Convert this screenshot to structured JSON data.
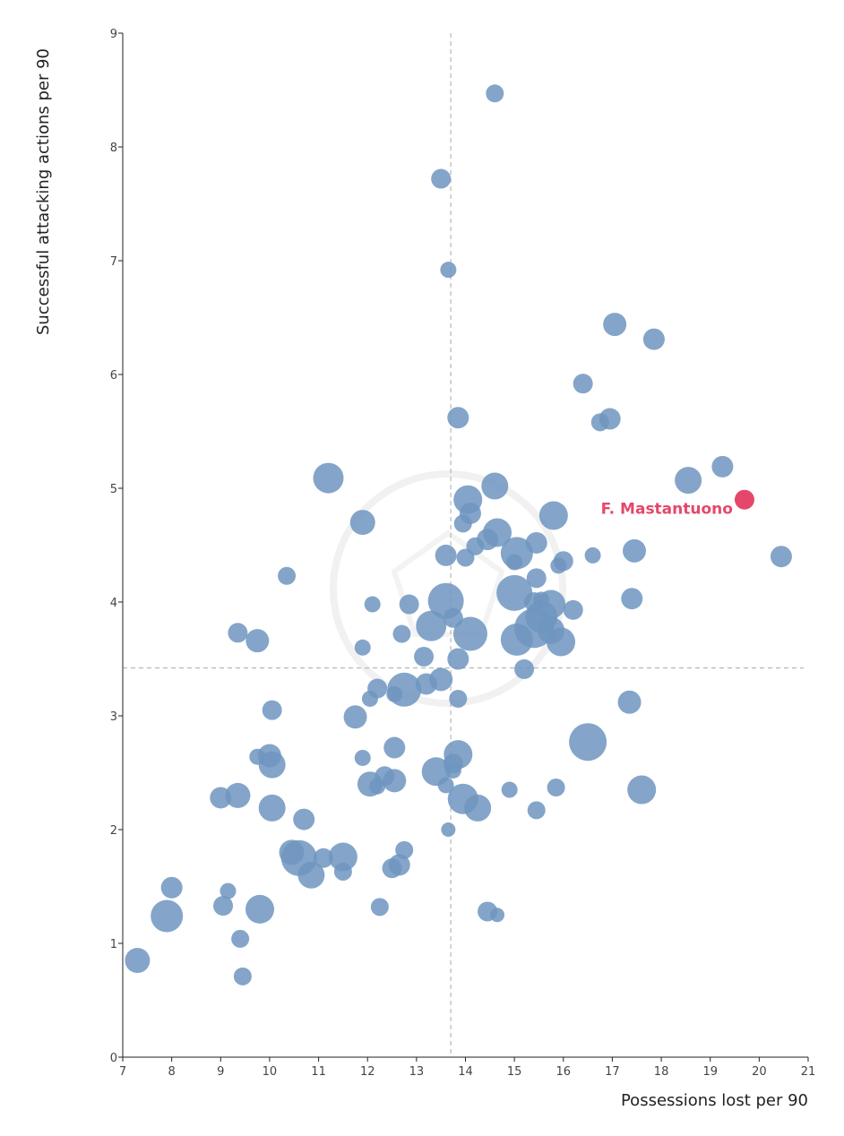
{
  "chart_data": {
    "type": "scatter",
    "xlabel": "Possessions lost per 90",
    "ylabel": "Successful attacking actions per 90",
    "xlim": [
      7,
      21
    ],
    "ylim": [
      0,
      9
    ],
    "x_ticks": [
      7,
      8,
      9,
      10,
      11,
      12,
      13,
      14,
      15,
      16,
      17,
      18,
      19,
      20,
      21
    ],
    "y_ticks": [
      0,
      1,
      2,
      3,
      4,
      5,
      6,
      7,
      8,
      9
    ],
    "reference_lines": {
      "x": 13.7,
      "y": 3.42
    },
    "grid": false,
    "colors": {
      "points": "#6f95bf",
      "highlight": "#e5476a",
      "reference_line": "#aaaaaa",
      "axis": "#222222"
    },
    "highlight": {
      "name": "F. Mastantuono",
      "x": 19.7,
      "y": 4.9
    },
    "points": [
      {
        "x": 14.6,
        "y": 8.47,
        "s": 10
      },
      {
        "x": 13.5,
        "y": 7.72,
        "s": 11
      },
      {
        "x": 13.65,
        "y": 6.92,
        "s": 9
      },
      {
        "x": 17.05,
        "y": 6.44,
        "s": 13
      },
      {
        "x": 17.85,
        "y": 6.31,
        "s": 12
      },
      {
        "x": 16.4,
        "y": 5.92,
        "s": 11
      },
      {
        "x": 13.85,
        "y": 5.62,
        "s": 12
      },
      {
        "x": 16.75,
        "y": 5.58,
        "s": 10
      },
      {
        "x": 16.95,
        "y": 5.61,
        "s": 12
      },
      {
        "x": 19.25,
        "y": 5.19,
        "s": 12
      },
      {
        "x": 18.55,
        "y": 5.07,
        "s": 15
      },
      {
        "x": 11.2,
        "y": 5.09,
        "s": 17
      },
      {
        "x": 14.05,
        "y": 4.9,
        "s": 16
      },
      {
        "x": 14.6,
        "y": 5.02,
        "s": 15
      },
      {
        "x": 14.1,
        "y": 4.78,
        "s": 12
      },
      {
        "x": 11.9,
        "y": 4.7,
        "s": 14
      },
      {
        "x": 15.8,
        "y": 4.76,
        "s": 16
      },
      {
        "x": 13.95,
        "y": 4.69,
        "s": 10
      },
      {
        "x": 14.65,
        "y": 4.61,
        "s": 16
      },
      {
        "x": 14.45,
        "y": 4.55,
        "s": 12
      },
      {
        "x": 14.2,
        "y": 4.49,
        "s": 10
      },
      {
        "x": 15.45,
        "y": 4.52,
        "s": 12
      },
      {
        "x": 15.05,
        "y": 4.43,
        "s": 18
      },
      {
        "x": 17.45,
        "y": 4.45,
        "s": 13
      },
      {
        "x": 13.6,
        "y": 4.41,
        "s": 12
      },
      {
        "x": 14.0,
        "y": 4.39,
        "s": 10
      },
      {
        "x": 15.0,
        "y": 4.35,
        "s": 9
      },
      {
        "x": 15.9,
        "y": 4.32,
        "s": 9
      },
      {
        "x": 16.0,
        "y": 4.36,
        "s": 11
      },
      {
        "x": 16.6,
        "y": 4.41,
        "s": 9
      },
      {
        "x": 20.45,
        "y": 4.4,
        "s": 12
      },
      {
        "x": 10.35,
        "y": 4.23,
        "s": 10
      },
      {
        "x": 15.45,
        "y": 4.21,
        "s": 11
      },
      {
        "x": 15.0,
        "y": 4.08,
        "s": 20
      },
      {
        "x": 13.6,
        "y": 4.01,
        "s": 20
      },
      {
        "x": 15.4,
        "y": 4.0,
        "s": 11
      },
      {
        "x": 15.75,
        "y": 3.98,
        "s": 16
      },
      {
        "x": 15.55,
        "y": 4.02,
        "s": 9
      },
      {
        "x": 17.4,
        "y": 4.03,
        "s": 12
      },
      {
        "x": 12.1,
        "y": 3.98,
        "s": 9
      },
      {
        "x": 12.85,
        "y": 3.98,
        "s": 11
      },
      {
        "x": 16.2,
        "y": 3.93,
        "s": 11
      },
      {
        "x": 15.55,
        "y": 3.87,
        "s": 18
      },
      {
        "x": 13.75,
        "y": 3.86,
        "s": 11
      },
      {
        "x": 13.3,
        "y": 3.79,
        "s": 17
      },
      {
        "x": 15.4,
        "y": 3.77,
        "s": 22
      },
      {
        "x": 15.75,
        "y": 3.75,
        "s": 15
      },
      {
        "x": 14.1,
        "y": 3.72,
        "s": 19
      },
      {
        "x": 12.7,
        "y": 3.72,
        "s": 10
      },
      {
        "x": 9.35,
        "y": 3.73,
        "s": 11
      },
      {
        "x": 9.75,
        "y": 3.66,
        "s": 13
      },
      {
        "x": 15.05,
        "y": 3.67,
        "s": 18
      },
      {
        "x": 15.95,
        "y": 3.65,
        "s": 16
      },
      {
        "x": 11.9,
        "y": 3.6,
        "s": 9
      },
      {
        "x": 13.15,
        "y": 3.52,
        "s": 11
      },
      {
        "x": 13.85,
        "y": 3.5,
        "s": 12
      },
      {
        "x": 15.2,
        "y": 3.41,
        "s": 11
      },
      {
        "x": 13.5,
        "y": 3.32,
        "s": 13
      },
      {
        "x": 13.2,
        "y": 3.28,
        "s": 12
      },
      {
        "x": 12.75,
        "y": 3.23,
        "s": 19
      },
      {
        "x": 12.2,
        "y": 3.24,
        "s": 11
      },
      {
        "x": 12.55,
        "y": 3.19,
        "s": 9
      },
      {
        "x": 12.05,
        "y": 3.15,
        "s": 9
      },
      {
        "x": 13.85,
        "y": 3.15,
        "s": 10
      },
      {
        "x": 17.35,
        "y": 3.12,
        "s": 13
      },
      {
        "x": 10.05,
        "y": 3.05,
        "s": 11
      },
      {
        "x": 11.75,
        "y": 2.99,
        "s": 13
      },
      {
        "x": 16.5,
        "y": 2.77,
        "s": 21
      },
      {
        "x": 12.55,
        "y": 2.72,
        "s": 12
      },
      {
        "x": 13.85,
        "y": 2.66,
        "s": 16
      },
      {
        "x": 10.0,
        "y": 2.65,
        "s": 13
      },
      {
        "x": 9.75,
        "y": 2.64,
        "s": 9
      },
      {
        "x": 11.9,
        "y": 2.63,
        "s": 9
      },
      {
        "x": 10.05,
        "y": 2.57,
        "s": 15
      },
      {
        "x": 13.75,
        "y": 2.58,
        "s": 11
      },
      {
        "x": 13.4,
        "y": 2.51,
        "s": 16
      },
      {
        "x": 13.75,
        "y": 2.52,
        "s": 9
      },
      {
        "x": 12.35,
        "y": 2.47,
        "s": 11
      },
      {
        "x": 12.55,
        "y": 2.43,
        "s": 13
      },
      {
        "x": 12.05,
        "y": 2.4,
        "s": 14
      },
      {
        "x": 12.2,
        "y": 2.38,
        "s": 9
      },
      {
        "x": 13.6,
        "y": 2.39,
        "s": 9
      },
      {
        "x": 14.9,
        "y": 2.35,
        "s": 9
      },
      {
        "x": 15.85,
        "y": 2.37,
        "s": 10
      },
      {
        "x": 17.6,
        "y": 2.35,
        "s": 16
      },
      {
        "x": 9.35,
        "y": 2.3,
        "s": 14
      },
      {
        "x": 9.0,
        "y": 2.28,
        "s": 12
      },
      {
        "x": 13.95,
        "y": 2.27,
        "s": 17
      },
      {
        "x": 14.25,
        "y": 2.19,
        "s": 15
      },
      {
        "x": 10.05,
        "y": 2.19,
        "s": 15
      },
      {
        "x": 15.45,
        "y": 2.17,
        "s": 10
      },
      {
        "x": 10.7,
        "y": 2.09,
        "s": 12
      },
      {
        "x": 13.65,
        "y": 2.0,
        "s": 8
      },
      {
        "x": 12.75,
        "y": 1.82,
        "s": 10
      },
      {
        "x": 10.45,
        "y": 1.8,
        "s": 14
      },
      {
        "x": 10.6,
        "y": 1.75,
        "s": 20
      },
      {
        "x": 11.1,
        "y": 1.75,
        "s": 11
      },
      {
        "x": 11.5,
        "y": 1.76,
        "s": 16
      },
      {
        "x": 12.65,
        "y": 1.69,
        "s": 12
      },
      {
        "x": 12.5,
        "y": 1.66,
        "s": 11
      },
      {
        "x": 11.5,
        "y": 1.63,
        "s": 10
      },
      {
        "x": 10.85,
        "y": 1.6,
        "s": 15
      },
      {
        "x": 8.0,
        "y": 1.49,
        "s": 12
      },
      {
        "x": 9.15,
        "y": 1.46,
        "s": 9
      },
      {
        "x": 9.05,
        "y": 1.33,
        "s": 11
      },
      {
        "x": 9.8,
        "y": 1.3,
        "s": 16
      },
      {
        "x": 12.25,
        "y": 1.32,
        "s": 10
      },
      {
        "x": 14.45,
        "y": 1.28,
        "s": 11
      },
      {
        "x": 14.65,
        "y": 1.25,
        "s": 8
      },
      {
        "x": 7.9,
        "y": 1.24,
        "s": 18
      },
      {
        "x": 9.4,
        "y": 1.04,
        "s": 10
      },
      {
        "x": 7.3,
        "y": 0.85,
        "s": 14
      },
      {
        "x": 9.45,
        "y": 0.71,
        "s": 10
      }
    ]
  }
}
